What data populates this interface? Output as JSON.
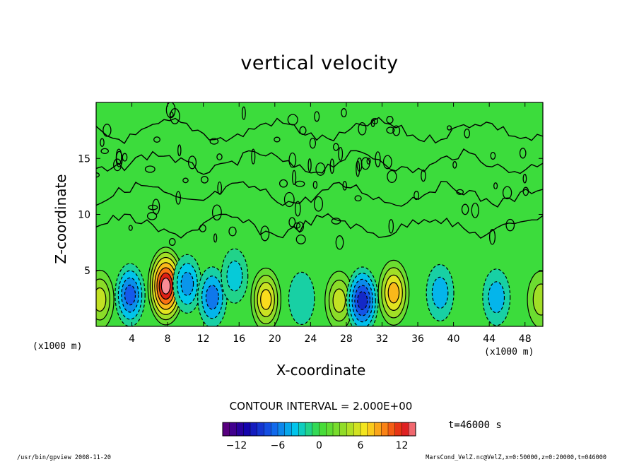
{
  "chart_data": {
    "type": "heatmap",
    "subtype": "filled-contour",
    "title": "vertical velocity",
    "xlabel": "X-coordinate",
    "ylabel": "Z-coordinate",
    "xunit_left": "(x1000 m)",
    "xunit_right": "(x1000 m)",
    "xlim": [
      0,
      50
    ],
    "ylim": [
      0,
      20
    ],
    "xticks": [
      "4",
      "8",
      "12",
      "16",
      "20",
      "24",
      "28",
      "32",
      "36",
      "40",
      "44",
      "48"
    ],
    "xtick_values": [
      4,
      8,
      12,
      16,
      20,
      24,
      28,
      32,
      36,
      40,
      44,
      48
    ],
    "yticks": [
      "5",
      "10",
      "15"
    ],
    "ytick_values": [
      5,
      10,
      15
    ],
    "contour_interval": "CONTOUR INTERVAL = 2.000E+00",
    "time_label": "t=46000 s",
    "colorbar": {
      "range": [
        -14,
        14
      ],
      "ticks": [
        "−12",
        "−6",
        "0",
        "6",
        "12"
      ],
      "tick_values": [
        -12,
        -6,
        0,
        6,
        12
      ]
    },
    "cells": [
      {
        "x": 0.4,
        "z": 2.4,
        "value": 5,
        "sign": "up"
      },
      {
        "x": 3.8,
        "z": 2.8,
        "value": -7,
        "sign": "down"
      },
      {
        "x": 7.8,
        "z": 3.6,
        "value": 14,
        "sign": "up"
      },
      {
        "x": 10.2,
        "z": 3.8,
        "value": -5,
        "sign": "down"
      },
      {
        "x": 13.0,
        "z": 2.6,
        "value": -6,
        "sign": "down"
      },
      {
        "x": 15.5,
        "z": 4.5,
        "value": -3,
        "sign": "down"
      },
      {
        "x": 19.0,
        "z": 2.4,
        "value": 7,
        "sign": "up"
      },
      {
        "x": 23.0,
        "z": 2.5,
        "value": -2,
        "sign": "down"
      },
      {
        "x": 27.2,
        "z": 2.3,
        "value": 5,
        "sign": "up"
      },
      {
        "x": 29.8,
        "z": 2.3,
        "value": -9,
        "sign": "down"
      },
      {
        "x": 33.3,
        "z": 3.0,
        "value": 8,
        "sign": "up"
      },
      {
        "x": 38.5,
        "z": 3.0,
        "value": -4,
        "sign": "down"
      },
      {
        "x": 44.8,
        "z": 2.6,
        "value": -4,
        "sign": "down"
      },
      {
        "x": 49.8,
        "z": 2.4,
        "value": 4,
        "sign": "up"
      }
    ]
  },
  "footer": {
    "left": "/usr/bin/gpview  2008-11-20",
    "right": "MarsCond_VelZ.nc@VelZ,x=0:50000,z=0:20000,t=046000"
  }
}
